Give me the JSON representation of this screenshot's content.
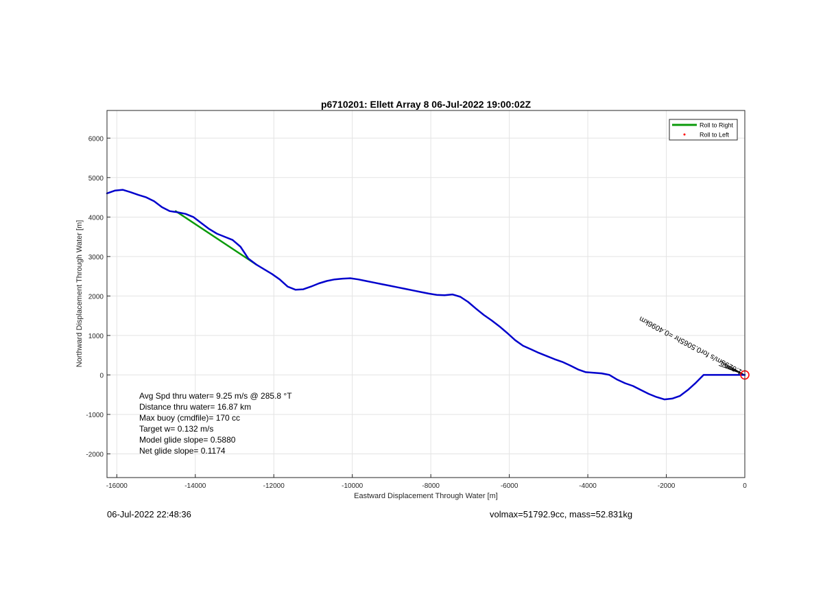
{
  "chart_data": {
    "type": "line",
    "title": "p6710201: Ellett Array 8 06-Jul-2022 19:00:02Z",
    "xlabel": "Eastward Displacement Through Water [m]",
    "ylabel": "Northward Displacement Through Water [m]",
    "xlim": [
      -16250,
      0
    ],
    "ylim": [
      -2600,
      6700
    ],
    "grid": true,
    "legend_position": "top-right",
    "x_ticks": [
      -16000,
      -14000,
      -12000,
      -10000,
      -8000,
      -6000,
      -4000,
      -2000,
      0
    ],
    "x_tick_labels": [
      "-16000",
      "-14000",
      "-12000",
      "-10000",
      "-8000",
      "-6000",
      "-4000",
      "-2000",
      "0"
    ],
    "y_ticks": [
      -2000,
      -1000,
      0,
      1000,
      2000,
      3000,
      4000,
      5000,
      6000
    ],
    "y_tick_labels": [
      "-2000",
      "-1000",
      "0",
      "1000",
      "2000",
      "3000",
      "4000",
      "5000",
      "6000"
    ],
    "legend": [
      {
        "label": "Roll to Right",
        "color": "#0a9a0a",
        "marker": "line"
      },
      {
        "label": "Roll to Left",
        "color": "#ff0000",
        "marker": "dot"
      }
    ],
    "series": [
      {
        "name": "Roll to Right",
        "color": "#0a9a0a",
        "x": [
          -14500,
          -12450
        ],
        "y": [
          4150,
          2800
        ]
      },
      {
        "color": "#0000cc",
        "x": [
          -16250,
          -16050,
          -15850,
          -15650,
          -15450,
          -15250,
          -15050,
          -14850,
          -14650,
          -14450,
          -14250,
          -14050,
          -13850,
          -13650,
          -13450,
          -13250,
          -13050,
          -12850,
          -12650,
          -12450,
          -12250,
          -12050,
          -11850,
          -11650,
          -11450,
          -11250,
          -11050,
          -10850,
          -10650,
          -10450,
          -10250,
          -10050,
          -9850,
          -9650,
          -9450,
          -9250,
          -9050,
          -8850,
          -8650,
          -8450,
          -8250,
          -8050,
          -7850,
          -7650,
          -7450,
          -7250,
          -7050,
          -6850,
          -6650,
          -6450,
          -6250,
          -6050,
          -5850,
          -5650,
          -5450,
          -5250,
          -5050,
          -4850,
          -4650,
          -4450,
          -4250,
          -4050,
          -3850,
          -3650,
          -3450,
          -3250,
          -3050,
          -2850,
          -2650,
          -2450,
          -2250,
          -2050,
          -1850,
          -1650,
          -1450,
          -1250,
          -1050,
          -850,
          -650,
          -450,
          -250,
          -50,
          0
        ],
        "y": [
          4600,
          4670,
          4690,
          4630,
          4560,
          4500,
          4400,
          4250,
          4150,
          4120,
          4080,
          4000,
          3850,
          3700,
          3580,
          3500,
          3420,
          3250,
          2950,
          2800,
          2680,
          2560,
          2420,
          2240,
          2160,
          2170,
          2240,
          2320,
          2380,
          2420,
          2440,
          2450,
          2420,
          2380,
          2340,
          2300,
          2260,
          2220,
          2180,
          2140,
          2100,
          2060,
          2030,
          2020,
          2040,
          1980,
          1850,
          1680,
          1520,
          1380,
          1230,
          1060,
          880,
          740,
          650,
          560,
          480,
          400,
          330,
          240,
          140,
          70,
          55,
          40,
          0,
          -120,
          -210,
          -280,
          -380,
          -480,
          -560,
          -620,
          -600,
          -530,
          -380,
          -200,
          0,
          0,
          0,
          0,
          0,
          0,
          0
        ]
      }
    ],
    "end_marker": {
      "x": 0,
      "y": 0,
      "color": "#ff0000"
    },
    "vector_label": "1.0293m/s for0.5065hr =0.4096km",
    "stats": [
      "Avg Spd thru water=  9.25 m/s @ 285.8 °T",
      "Distance thru water= 16.87 km",
      "Max buoy (cmdfile)= 170 cc",
      "Target w= 0.132 m/s",
      "Model glide slope= 0.5880",
      "Net glide slope= 0.1174"
    ]
  },
  "footer": {
    "timestamp": "06-Jul-2022 22:48:36",
    "vehicle": "volmax=51792.9cc, mass=52.831kg"
  }
}
